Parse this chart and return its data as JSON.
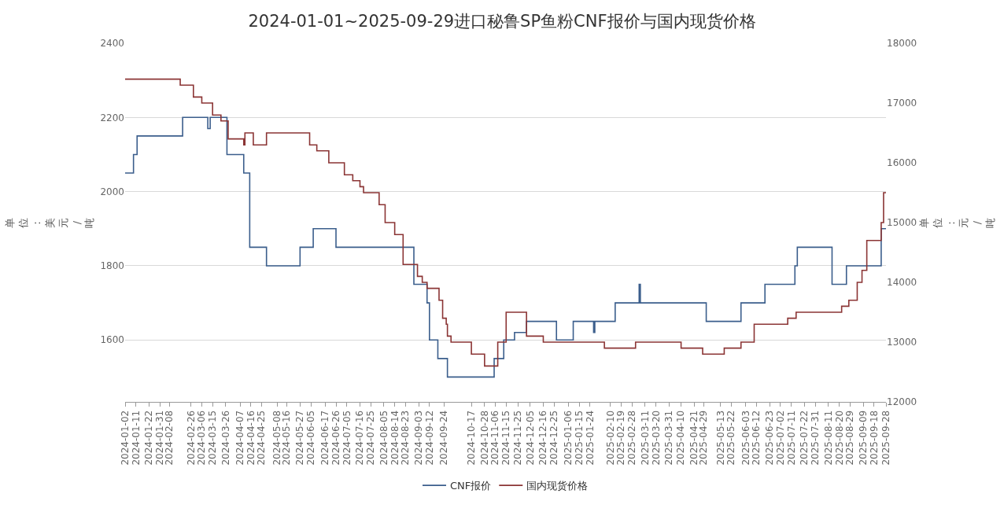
{
  "chart_data": {
    "type": "step",
    "title": "2024-01-01~2025-09-29进口秘鲁SP鱼粉CNF报价与国内现货价格",
    "ylabel": "单位：美元/吨",
    "y2label": "单位：元/吨",
    "xlim": [
      "2024-01-02",
      "2025-09-28"
    ],
    "xticks": [
      "2024-01-02",
      "2024-01-11",
      "2024-01-22",
      "2024-01-31",
      "2024-02-08",
      "2024-02-26",
      "2024-03-06",
      "2024-03-15",
      "2024-03-26",
      "2024-04-07",
      "2024-04-16",
      "2024-04-25",
      "2024-05-08",
      "2024-05-16",
      "2024-05-27",
      "2024-06-05",
      "2024-06-17",
      "2024-06-26",
      "2024-07-05",
      "2024-07-16",
      "2024-07-25",
      "2024-08-05",
      "2024-08-14",
      "2024-08-23",
      "2024-09-03",
      "2024-09-12",
      "2024-09-24",
      "2024-10-17",
      "2024-10-28",
      "2024-11-06",
      "2024-11-15",
      "2024-11-25",
      "2024-12-05",
      "2024-12-16",
      "2024-12-25",
      "2025-01-06",
      "2025-01-15",
      "2025-01-24",
      "2025-02-10",
      "2025-02-19",
      "2025-02-28",
      "2025-03-11",
      "2025-03-20",
      "2025-03-31",
      "2025-04-10",
      "2025-04-21",
      "2025-04-29",
      "2025-05-13",
      "2025-05-22",
      "2025-06-03",
      "2025-06-12",
      "2025-06-23",
      "2025-07-02",
      "2025-07-11",
      "2025-07-22",
      "2025-07-31",
      "2025-08-11",
      "2025-08-20",
      "2025-08-29",
      "2025-09-09",
      "2025-09-18",
      "2025-09-28"
    ],
    "ylim": [
      1433,
      2400
    ],
    "yticks": [
      1600,
      1800,
      2000,
      2200,
      2400
    ],
    "y2lim": [
      12000,
      18000
    ],
    "y2ticks": [
      12000,
      13000,
      14000,
      15000,
      16000,
      17000,
      18000
    ],
    "grid": "y",
    "legend": "bottom",
    "marker": "none",
    "line_style": "solid",
    "series": [
      {
        "name": "CNF报价",
        "color": "#3b5e8c",
        "x": [
          "2024-01-02",
          "2024-01-09",
          "2024-01-12",
          "2024-02-19",
          "2024-03-11",
          "2024-03-13",
          "2024-03-27",
          "2024-04-10",
          "2024-04-15",
          "2024-04-29",
          "2024-05-27",
          "2024-06-07",
          "2024-06-26",
          "2024-08-30",
          "2024-09-10",
          "2024-09-12",
          "2024-09-19",
          "2024-09-27",
          "2024-11-05",
          "2024-11-13",
          "2024-11-22",
          "2024-12-02",
          "2024-12-27",
          "2025-01-10",
          "2025-01-27",
          "2025-01-28",
          "2025-02-14",
          "2025-03-06",
          "2025-03-07",
          "2025-05-01",
          "2025-05-30",
          "2025-06-19",
          "2025-07-14",
          "2025-07-16",
          "2025-08-14",
          "2025-08-26",
          "2025-09-24",
          "2025-09-28"
        ],
        "values": [
          2050,
          2100,
          2150,
          2200,
          2170,
          2200,
          2100,
          2050,
          1850,
          1800,
          1850,
          1900,
          1850,
          1750,
          1700,
          1600,
          1550,
          1500,
          1550,
          1600,
          1620,
          1650,
          1600,
          1650,
          1620,
          1650,
          1700,
          1750,
          1700,
          1650,
          1700,
          1750,
          1800,
          1850,
          1750,
          1800,
          1900,
          1900
        ]
      },
      {
        "name": "国内现货价格",
        "color": "#8b3535",
        "axis": "y2",
        "x": [
          "2024-01-02",
          "2024-02-17",
          "2024-02-28",
          "2024-03-06",
          "2024-03-15",
          "2024-03-22",
          "2024-03-28",
          "2024-04-10",
          "2024-04-11",
          "2024-04-18",
          "2024-04-29",
          "2024-06-04",
          "2024-06-10",
          "2024-06-20",
          "2024-07-03",
          "2024-07-10",
          "2024-07-16",
          "2024-07-19",
          "2024-08-01",
          "2024-08-06",
          "2024-08-14",
          "2024-08-21",
          "2024-09-02",
          "2024-09-06",
          "2024-09-10",
          "2024-09-20",
          "2024-09-23",
          "2024-09-26",
          "2024-09-27",
          "2024-09-30",
          "2024-10-17",
          "2024-10-28",
          "2024-11-08",
          "2024-11-15",
          "2024-12-02",
          "2024-12-16",
          "2025-02-05",
          "2025-03-03",
          "2025-04-10",
          "2025-04-28",
          "2025-05-16",
          "2025-05-30",
          "2025-06-10",
          "2025-07-08",
          "2025-07-15",
          "2025-08-22",
          "2025-08-28",
          "2025-09-04",
          "2025-09-08",
          "2025-09-12",
          "2025-09-24",
          "2025-09-26",
          "2025-09-28"
        ],
        "values": [
          17400,
          17300,
          17100,
          17000,
          16800,
          16700,
          16400,
          16300,
          16500,
          16300,
          16500,
          16300,
          16200,
          16000,
          15800,
          15700,
          15600,
          15500,
          15300,
          15000,
          14800,
          14300,
          14100,
          14000,
          13900,
          13700,
          13400,
          13300,
          13100,
          13000,
          12800,
          12600,
          13000,
          13500,
          13100,
          13000,
          12900,
          13000,
          12900,
          12800,
          12900,
          13000,
          13300,
          13400,
          13500,
          13600,
          13700,
          14000,
          14200,
          14700,
          15000,
          15500,
          15500
        ]
      }
    ]
  }
}
